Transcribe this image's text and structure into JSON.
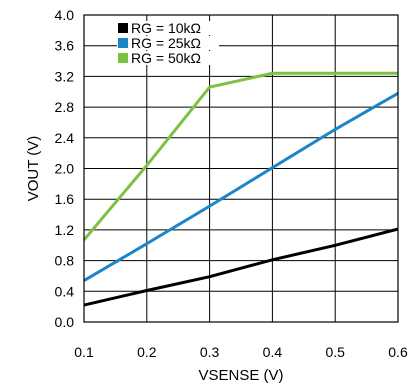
{
  "chart_data": {
    "type": "line",
    "title": "",
    "xlabel": "VSENSE (V)",
    "ylabel": "VOUT (V)",
    "xlim": [
      0.1,
      0.6
    ],
    "ylim": [
      0.0,
      4.0
    ],
    "xticks": [
      0.1,
      0.2,
      0.3,
      0.4,
      0.5,
      0.6
    ],
    "xtick_labels": [
      "0.1",
      "0.2",
      "0.3",
      "0.4",
      "0.5",
      "0.6"
    ],
    "yticks": [
      0.0,
      0.4,
      0.8,
      1.2,
      1.6,
      2.0,
      2.4,
      2.8,
      3.2,
      3.6,
      4.0
    ],
    "ytick_labels": [
      "0.0",
      "0.4",
      "0.8",
      "1.2",
      "1.6",
      "2.0",
      "2.4",
      "2.8",
      "3.2",
      "3.6",
      "4.0"
    ],
    "grid": true,
    "legend_position": "top-left",
    "series": [
      {
        "name": "RG = 10kΩ",
        "color": "#000000",
        "x": [
          0.1,
          0.2,
          0.3,
          0.4,
          0.5,
          0.6
        ],
        "y": [
          0.22,
          0.41,
          0.59,
          0.81,
          1.0,
          1.21
        ]
      },
      {
        "name": "RG = 25kΩ",
        "color": "#1a86c8",
        "x": [
          0.1,
          0.2,
          0.3,
          0.4,
          0.5,
          0.6
        ],
        "y": [
          0.54,
          1.02,
          1.51,
          2.01,
          2.51,
          2.98
        ]
      },
      {
        "name": "RG = 50kΩ",
        "color": "#7cc242",
        "x": [
          0.1,
          0.2,
          0.3,
          0.4,
          0.6
        ],
        "y": [
          1.07,
          2.04,
          3.06,
          3.24,
          3.24
        ]
      }
    ]
  }
}
